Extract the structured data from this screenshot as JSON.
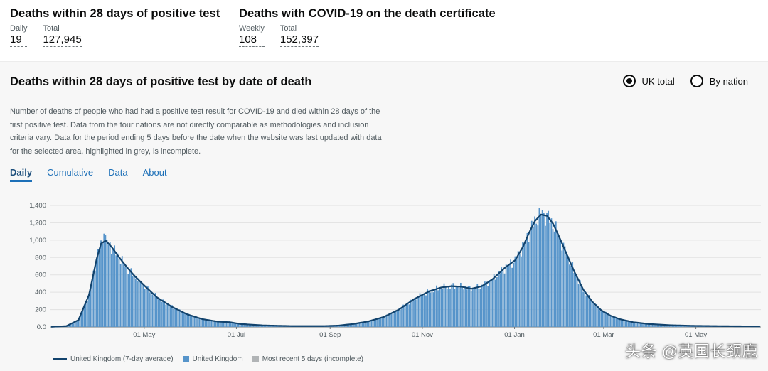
{
  "summary": {
    "deaths_28": {
      "title": "Deaths within 28 days of positive test",
      "daily_label": "Daily",
      "daily_value": "19",
      "total_label": "Total",
      "total_value": "127,945"
    },
    "deaths_cert": {
      "title": "Deaths with COVID-19 on the death certificate",
      "weekly_label": "Weekly",
      "weekly_value": "108",
      "total_label": "Total",
      "total_value": "152,397"
    }
  },
  "card": {
    "title": "Deaths within 28 days of positive test by date of death",
    "radio": {
      "uk_total": "UK total",
      "by_nation": "By nation",
      "selected": "uk_total"
    },
    "description": "Number of deaths of people who had had a positive test result for COVID-19 and died within 28 days of the first positive test. Data from the four nations are not directly comparable as methodologies and inclusion criteria vary. Data for the period ending 5 days before the date when the website was last updated with data for the selected area, highlighted in grey, is incomplete.",
    "tabs": [
      "Daily",
      "Cumulative",
      "Data",
      "About"
    ],
    "active_tab": "Daily"
  },
  "colors": {
    "bar": "#5694ca",
    "line": "#12436d",
    "incomplete": "#b1b4b6",
    "tab": "#1d70b8"
  },
  "legend": {
    "line": "United Kingdom (7-day average)",
    "bar": "United Kingdom",
    "incomplete": "Most recent 5 days (incomplete)"
  },
  "watermark": "头条 @英国长颈鹿",
  "chart_data": {
    "type": "bar",
    "title": "Deaths within 28 days of positive test by date of death",
    "series_name": "United Kingdom",
    "average_name": "United Kingdom (7-day average)",
    "ylim": [
      0,
      1400
    ],
    "yticks": [
      "0.0",
      "200",
      "400",
      "600",
      "800",
      "1,000",
      "1,200",
      "1,400"
    ],
    "ytick_values": [
      0,
      200,
      400,
      600,
      800,
      1000,
      1200,
      1400
    ],
    "total_days": 470,
    "xticks": [
      {
        "label": "01 May",
        "day": 62
      },
      {
        "label": "01 Jul",
        "day": 123
      },
      {
        "label": "01 Sep",
        "day": 185
      },
      {
        "label": "01 Nov",
        "day": 246
      },
      {
        "label": "01 Jan",
        "day": 307
      },
      {
        "label": "01 Mar",
        "day": 366
      },
      {
        "label": "01 May",
        "day": 427
      }
    ],
    "average_keypoints": [
      [
        0,
        2
      ],
      [
        10,
        10
      ],
      [
        18,
        80
      ],
      [
        25,
        370
      ],
      [
        30,
        780
      ],
      [
        33,
        960
      ],
      [
        36,
        995
      ],
      [
        40,
        920
      ],
      [
        45,
        800
      ],
      [
        50,
        690
      ],
      [
        55,
        590
      ],
      [
        62,
        470
      ],
      [
        70,
        340
      ],
      [
        80,
        230
      ],
      [
        90,
        145
      ],
      [
        100,
        90
      ],
      [
        110,
        62
      ],
      [
        118,
        55
      ],
      [
        125,
        35
      ],
      [
        140,
        18
      ],
      [
        160,
        10
      ],
      [
        180,
        10
      ],
      [
        190,
        16
      ],
      [
        200,
        35
      ],
      [
        210,
        65
      ],
      [
        220,
        115
      ],
      [
        230,
        200
      ],
      [
        240,
        320
      ],
      [
        250,
        410
      ],
      [
        258,
        455
      ],
      [
        265,
        470
      ],
      [
        272,
        462
      ],
      [
        278,
        440
      ],
      [
        285,
        470
      ],
      [
        292,
        550
      ],
      [
        300,
        680
      ],
      [
        307,
        770
      ],
      [
        312,
        920
      ],
      [
        316,
        1080
      ],
      [
        320,
        1220
      ],
      [
        324,
        1295
      ],
      [
        328,
        1280
      ],
      [
        332,
        1190
      ],
      [
        336,
        1040
      ],
      [
        340,
        880
      ],
      [
        346,
        640
      ],
      [
        352,
        430
      ],
      [
        358,
        290
      ],
      [
        364,
        190
      ],
      [
        370,
        130
      ],
      [
        376,
        90
      ],
      [
        385,
        55
      ],
      [
        395,
        35
      ],
      [
        410,
        20
      ],
      [
        425,
        13
      ],
      [
        440,
        10
      ],
      [
        455,
        8
      ],
      [
        469,
        7
      ]
    ],
    "daily_spikes": [
      [
        35,
        1075
      ],
      [
        58,
        560
      ],
      [
        268,
        460
      ],
      [
        278,
        420
      ],
      [
        325,
        1350
      ],
      [
        341,
        870
      ]
    ],
    "incomplete_days": 5
  }
}
